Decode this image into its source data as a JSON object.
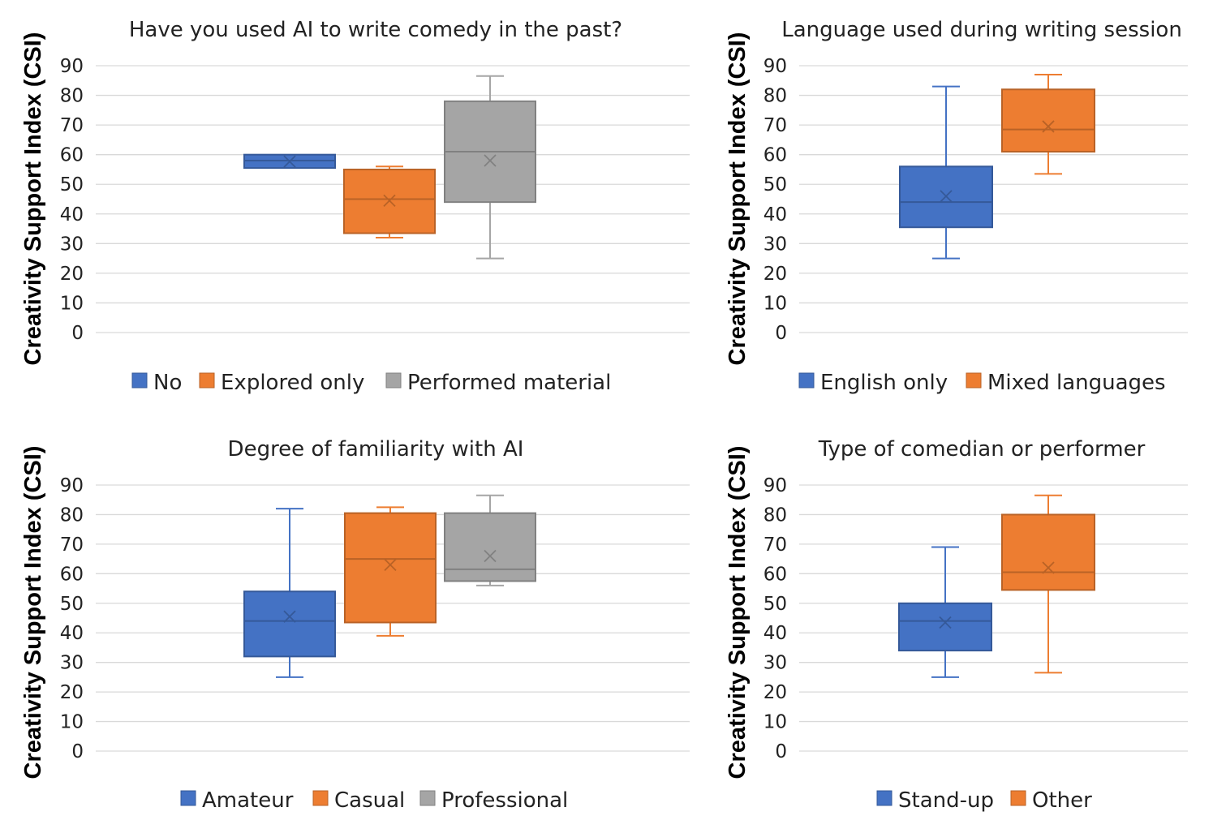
{
  "chart_data": [
    {
      "type": "box",
      "title": "Have you used AI to write comedy in the past?",
      "ylabel": "Creativity Support Index (CSI)",
      "ylim": [
        0,
        90
      ],
      "yticks": [
        0,
        10,
        20,
        30,
        40,
        50,
        60,
        70,
        80,
        90
      ],
      "grid": true,
      "legend_position": "bottom",
      "series": [
        {
          "name": "No",
          "color": "#4472C4",
          "min": 55.5,
          "q1": 55.5,
          "median": 58,
          "q3": 60,
          "max": 60,
          "mean": 57.7
        },
        {
          "name": "Explored only",
          "color": "#ED7D31",
          "min": 32,
          "q1": 33.5,
          "median": 45,
          "q3": 55,
          "max": 56,
          "mean": 44.5
        },
        {
          "name": "Performed material",
          "color": "#A5A5A5",
          "min": 25,
          "q1": 44,
          "median": 61,
          "q3": 78,
          "max": 86.5,
          "mean": 58
        }
      ]
    },
    {
      "type": "box",
      "title": "Language used during writing session",
      "ylabel": "Creativity Support Index (CSI)",
      "ylim": [
        0,
        90
      ],
      "yticks": [
        0,
        10,
        20,
        30,
        40,
        50,
        60,
        70,
        80,
        90
      ],
      "grid": true,
      "legend_position": "bottom",
      "series": [
        {
          "name": "English only",
          "color": "#4472C4",
          "min": 25,
          "q1": 35.5,
          "median": 44,
          "q3": 56,
          "max": 83,
          "mean": 46
        },
        {
          "name": "Mixed languages",
          "color": "#ED7D31",
          "min": 53.5,
          "q1": 61,
          "median": 68.5,
          "q3": 82,
          "max": 87,
          "mean": 69.5
        }
      ]
    },
    {
      "type": "box",
      "title": "Degree of familiarity with AI",
      "ylabel": "Creativity Support Index (CSI)",
      "ylim": [
        0,
        90
      ],
      "yticks": [
        0,
        10,
        20,
        30,
        40,
        50,
        60,
        70,
        80,
        90
      ],
      "grid": true,
      "legend_position": "bottom",
      "series": [
        {
          "name": "Amateur",
          "color": "#4472C4",
          "min": 25,
          "q1": 32,
          "median": 44,
          "q3": 54,
          "max": 82,
          "mean": 45.5
        },
        {
          "name": "Casual",
          "color": "#ED7D31",
          "min": 39,
          "q1": 43.5,
          "median": 65,
          "q3": 80.5,
          "max": 82.5,
          "mean": 63
        },
        {
          "name": "Professional",
          "color": "#A5A5A5",
          "min": 56,
          "q1": 57.5,
          "median": 61.5,
          "q3": 80.5,
          "max": 86.5,
          "mean": 66
        }
      ]
    },
    {
      "type": "box",
      "title": "Type of comedian or performer",
      "ylabel": "Creativity Support Index (CSI)",
      "ylim": [
        0,
        90
      ],
      "yticks": [
        0,
        10,
        20,
        30,
        40,
        50,
        60,
        70,
        80,
        90
      ],
      "grid": true,
      "legend_position": "bottom",
      "series": [
        {
          "name": "Stand-up",
          "color": "#4472C4",
          "min": 25,
          "q1": 34,
          "median": 44,
          "q3": 50,
          "max": 69,
          "mean": 43.5
        },
        {
          "name": "Other",
          "color": "#ED7D31",
          "min": 26.5,
          "q1": 54.5,
          "median": 60.5,
          "q3": 80,
          "max": 86.5,
          "mean": 62
        }
      ]
    }
  ]
}
